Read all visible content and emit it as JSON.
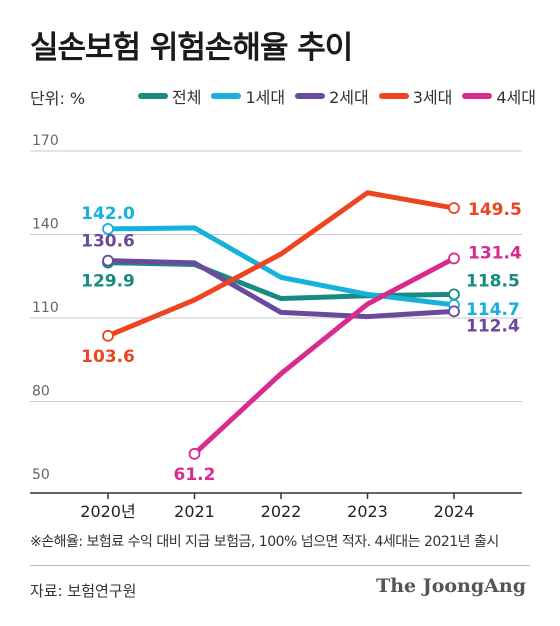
{
  "title": "실손보험 위험손해율 추이",
  "unit_label": "단위: %",
  "footnote": "※손해율: 보험료 수익 대비 지급 보험금, 100% 넘으면 적자. 4세대는 2021년 출시",
  "source": "자료: 보험연구원",
  "brand": "The JoongAng",
  "chart_data": {
    "type": "line",
    "x": [
      "2020년",
      "2021",
      "2022",
      "2023",
      "2024"
    ],
    "ylim": [
      50,
      170
    ],
    "yticks": [
      50,
      80,
      110,
      140,
      170
    ],
    "grid": true,
    "legend_position": "top",
    "series": [
      {
        "name": "전체",
        "color": "#168b83",
        "values": [
          129.9,
          129.2,
          117.0,
          118.0,
          118.5
        ],
        "labels": {
          "0": "129.9",
          "4": "118.5"
        }
      },
      {
        "name": "1세대",
        "color": "#16b2dc",
        "values": [
          142.0,
          142.4,
          124.6,
          118.5,
          114.7
        ],
        "labels": {
          "0": "142.0",
          "4": "114.7"
        }
      },
      {
        "name": "2세대",
        "color": "#6a4a9c",
        "values": [
          130.6,
          129.8,
          112.0,
          110.5,
          112.4
        ],
        "labels": {
          "0": "130.6",
          "4": "112.4"
        }
      },
      {
        "name": "3세대",
        "color": "#ee4420",
        "values": [
          103.6,
          116.5,
          133.0,
          155.0,
          149.5
        ],
        "labels": {
          "0": "103.6",
          "4": "149.5"
        }
      },
      {
        "name": "4세대",
        "color": "#d92b8f",
        "values": [
          null,
          61.2,
          90.0,
          115.0,
          131.4
        ],
        "labels": {
          "1": "61.2",
          "4": "131.4"
        }
      }
    ]
  }
}
